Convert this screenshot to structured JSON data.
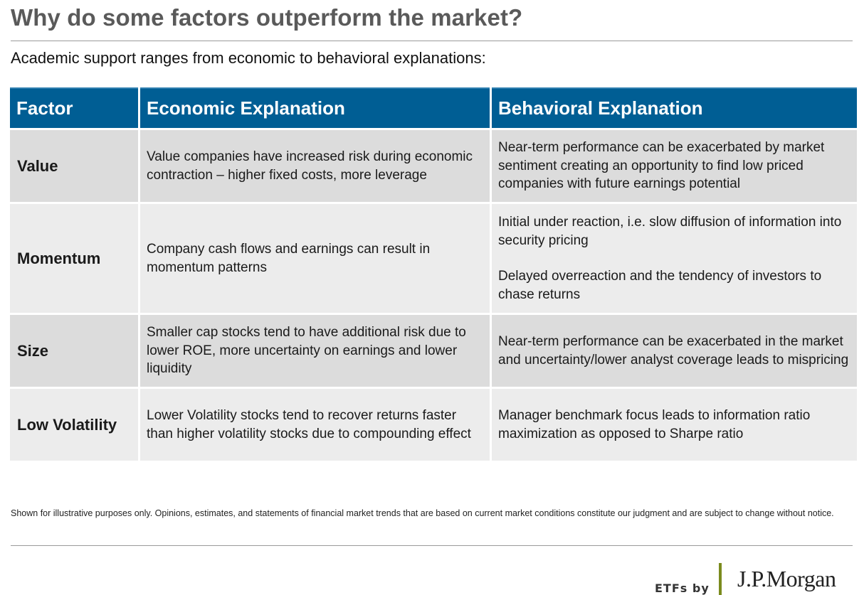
{
  "title": "Why do some factors outperform the market?",
  "subtitle": "Academic support ranges from economic to behavioral explanations:",
  "table": {
    "headers": [
      "Factor",
      "Economic Explanation",
      "Behavioral Explanation"
    ],
    "rows": [
      {
        "factor": "Value",
        "economic": "Value companies have increased risk during economic contraction – higher fixed costs, more leverage",
        "behavioral": [
          "Near-term performance can be exacerbated by market sentiment creating an opportunity to find low priced companies with future earnings potential"
        ]
      },
      {
        "factor": "Momentum",
        "economic": "Company cash flows and earnings can result in momentum patterns",
        "behavioral": [
          "Initial under reaction, i.e. slow diffusion of information into security pricing",
          "Delayed overreaction and the tendency of investors to chase returns"
        ]
      },
      {
        "factor": "Size",
        "economic": "Smaller cap stocks tend to have additional risk due to lower ROE, more uncertainty on earnings and lower liquidity",
        "behavioral": [
          "Near-term performance can be exacerbated in the market and uncertainty/lower analyst coverage leads to mispricing"
        ]
      },
      {
        "factor": "Low Volatility",
        "economic": "Lower Volatility stocks tend to recover returns faster than higher volatility stocks due to compounding effect",
        "behavioral": [
          "Manager benchmark focus leads to information ratio maximization as opposed to Sharpe ratio"
        ]
      }
    ]
  },
  "disclaimer": "Shown for illustrative purposes only. Opinions, estimates, and statements of financial market trends that are based on current market conditions constitute our judgment and are subject to change without notice.",
  "footer": {
    "etfs_by": "ETFs by",
    "brand": "J.P.Morgan"
  },
  "colors": {
    "header_bg": "#005e94",
    "row_dark": "#dcdcdc",
    "row_light": "#ececec",
    "logo_bar": "#7b8b1e"
  }
}
